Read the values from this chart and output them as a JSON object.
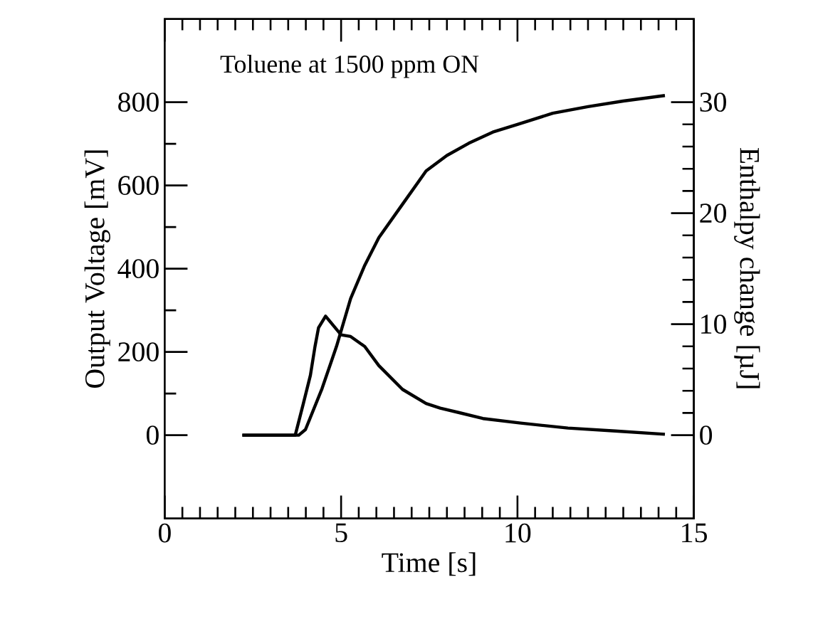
{
  "chart_data": {
    "type": "line",
    "xlabel": "Time [s]",
    "ylabel": "Output Voltage [mV]",
    "y2label": "Enthalpy change [µJ]",
    "annotations": [
      "Toluene at 1500 ppm ON"
    ],
    "xlim": [
      0,
      15
    ],
    "xticks": [
      0,
      5,
      10,
      15
    ],
    "ylim": [
      -200,
      1000
    ],
    "yticks": [
      0,
      200,
      400,
      600,
      800
    ],
    "y2lim": [
      -7.5,
      37.5
    ],
    "y2ticks": [
      0,
      10,
      20,
      30
    ],
    "grid": false,
    "marker": "none",
    "line_style": "solid",
    "series": [
      {
        "color": "#000000",
        "x": [
          2.2,
          3.0,
          3.7,
          3.93,
          4.13,
          4.26,
          4.36,
          4.56,
          5.0,
          5.27,
          5.67,
          6.07,
          6.74,
          7.41,
          7.81,
          8.35,
          9.02,
          10.09,
          11.43,
          12.77,
          14.18
        ],
        "values": [
          0,
          0,
          0,
          76,
          144,
          213,
          258,
          286,
          241,
          237,
          213,
          167,
          110,
          76,
          65,
          54,
          40,
          29,
          17,
          10,
          2
        ]
      },
      {
        "color": "#000000",
        "axis": "y2",
        "x": [
          2.2,
          3.0,
          3.8,
          3.99,
          4.46,
          4.87,
          5.27,
          5.67,
          6.07,
          6.74,
          7.41,
          8.0,
          8.62,
          9.3,
          10.0,
          11.0,
          12.0,
          13.0,
          14.18
        ],
        "values": [
          0,
          0,
          0,
          0.5,
          4.2,
          8.0,
          12.3,
          15.3,
          17.8,
          20.8,
          23.8,
          25.2,
          26.3,
          27.3,
          28.0,
          29.0,
          29.6,
          30.1,
          30.6
        ]
      }
    ]
  }
}
